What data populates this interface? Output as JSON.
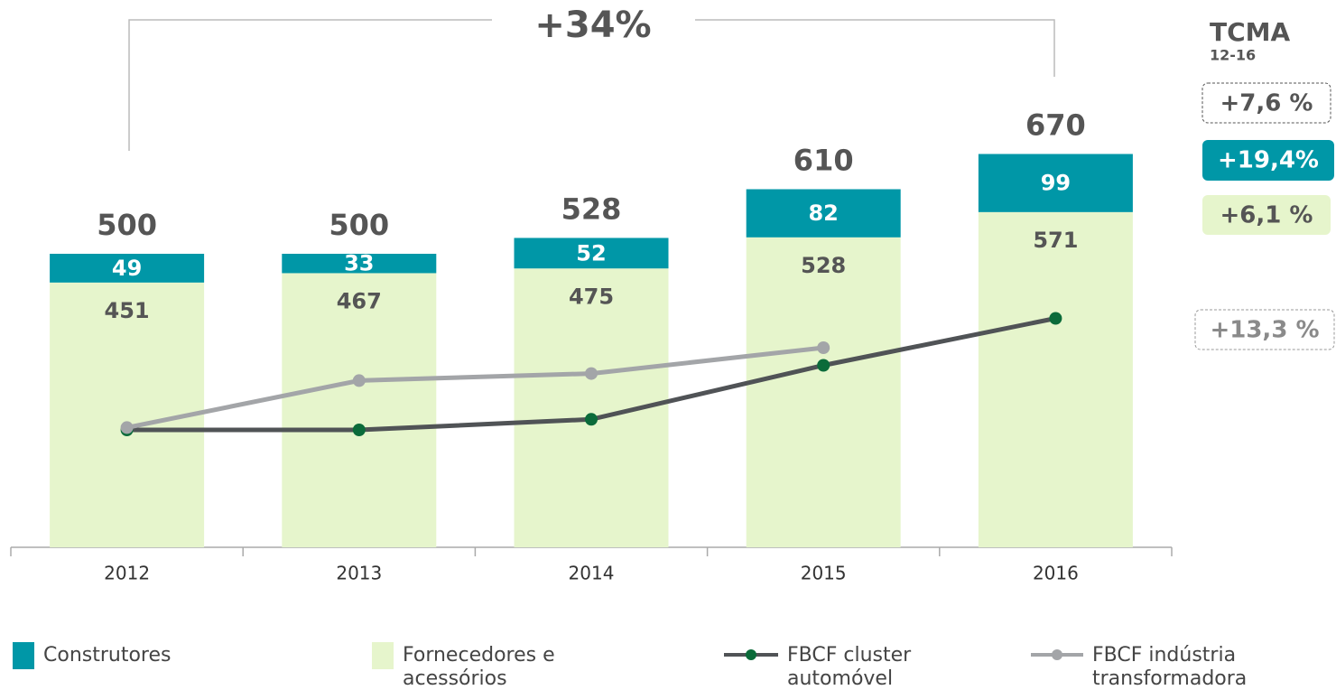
{
  "chart_data": {
    "type": "bar",
    "categories": [
      "2012",
      "2013",
      "2014",
      "2015",
      "2016"
    ],
    "ylim": [
      0,
      900
    ],
    "y2lim": [
      0,
      450
    ],
    "series": [
      {
        "name": "Fornecedores e acessórios",
        "type": "bar",
        "color": "#e6f5cc",
        "values": [
          451,
          467,
          475,
          528,
          571
        ]
      },
      {
        "name": "Construtores",
        "type": "bar",
        "color": "#0097a7",
        "values": [
          49,
          33,
          52,
          82,
          99
        ]
      },
      {
        "name": "FBCF cluster automóvel",
        "type": "line",
        "axis": "y2",
        "color": "#505356",
        "marker_color": "#0b6b3a",
        "values": [
          100,
          100,
          109,
          155,
          195
        ]
      },
      {
        "name": "FBCF indústria transformadora",
        "type": "line",
        "axis": "y2",
        "color": "#a3a5a8",
        "marker_color": "#a3a5a8",
        "values": [
          102,
          142,
          148,
          170,
          null
        ]
      }
    ],
    "totals": [
      500,
      500,
      528,
      610,
      670
    ],
    "growth_label": "+34%",
    "cagr": {
      "title": "TCMA",
      "period": "12-16",
      "total": "+7,6 %",
      "construtores": "+19,4%",
      "fornecedores": "+6,1 %",
      "industria": "+13,3 %"
    }
  }
}
